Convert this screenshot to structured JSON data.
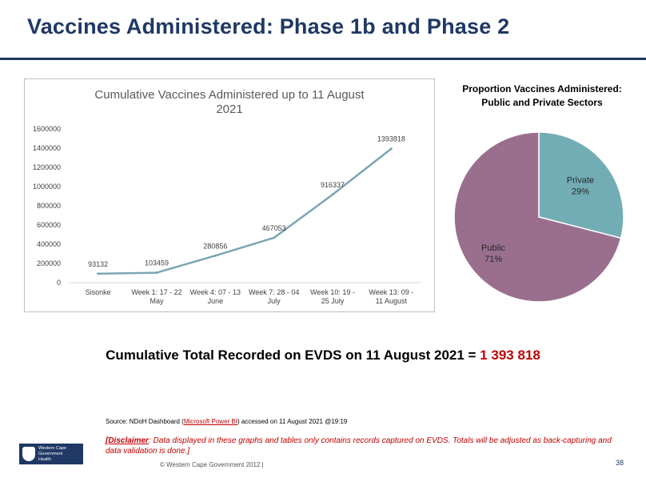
{
  "slide": {
    "title": "Vaccines Administered: Phase 1b and Phase 2",
    "total_label": "Cumulative Total Recorded on EVDS on 11 August 2021 =",
    "total_value": "1 393 818",
    "source_prefix": "Source: NDoH Dashboard (",
    "source_link": "Microsoft Power BI",
    "source_suffix": ") accessed on 11 August 2021 @19:19",
    "disclaimer_label": "[Disclaimer",
    "disclaimer_text": ": Data displayed in these graphs and tables only contains records captured on EVDS.  Totals will be adjusted as back-capturing and data validation is done.]",
    "logo_line1": "Western Cape",
    "logo_line2": "Government",
    "logo_line3": "Health",
    "copyright": "© Western Cape Government 2012  |",
    "page_number": "38"
  },
  "chart_data": [
    {
      "type": "line",
      "title": "Cumulative Vaccines Administered up to 11 August 2021",
      "title_lines": [
        "Cumulative Vaccines Administered up to 11 August",
        "2021"
      ],
      "categories": [
        [
          "Sisonke"
        ],
        [
          "Week 1: 17 - 22",
          "May"
        ],
        [
          "Week 4: 07 - 13",
          "June"
        ],
        [
          "Week 7: 28 - 04",
          "July"
        ],
        [
          "Week 10: 19 -",
          "25 July"
        ],
        [
          "Week 13: 09 -",
          "11 August"
        ]
      ],
      "values": [
        93132,
        103459,
        280856,
        467053,
        916337,
        1393818
      ],
      "data_labels": [
        "93132",
        "103459",
        "280856",
        "467053",
        "916337",
        "1393818"
      ],
      "ylim": [
        0,
        1600000
      ],
      "yticks": [
        0,
        200000,
        400000,
        600000,
        800000,
        1000000,
        1200000,
        1400000,
        1600000
      ],
      "line_color": "#7aa6b2",
      "grid": false,
      "legend": "none"
    },
    {
      "type": "pie",
      "title": "Proportion Vaccines Administered: Public and Private Sectors",
      "title_lines": [
        "Proportion Vaccines Administered:",
        "Public and Private Sectors"
      ],
      "slices": [
        {
          "name": "Private",
          "label": "29%",
          "value": 29,
          "color": "#72adb5"
        },
        {
          "name": "Public",
          "label": "71%",
          "value": 71,
          "color": "#9a6f8d"
        }
      ]
    }
  ]
}
